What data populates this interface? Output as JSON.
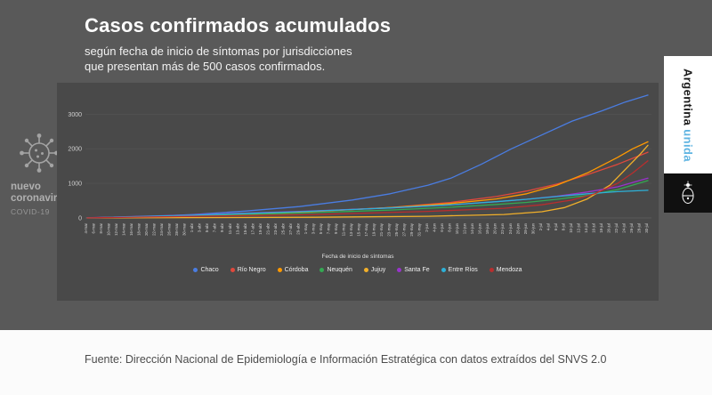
{
  "page": {
    "title": "Casos confirmados acumulados",
    "subtitle_line1": "según fecha de inicio de síntomas por jurisdicciones",
    "subtitle_line2": "que presentan más de 500 casos confirmados.",
    "source": "Fuente: Dirección Nacional de Epidemiología e Información Estratégica con datos extraídos del SNVS 2.0"
  },
  "branding": {
    "left_badge": {
      "line1": "nuevo",
      "line2": "coronavirus",
      "line3": "COVID-19"
    },
    "right_banner": {
      "word1": "Argentina",
      "word2": " unida",
      "accent_color": "#5fb4e2"
    }
  },
  "chart_data": {
    "type": "line",
    "title": "",
    "xlabel": "Fecha de inicio de síntomas",
    "ylabel": "",
    "ylim": [
      0,
      3600
    ],
    "yticks": [
      0,
      1000,
      2000,
      3000
    ],
    "grid": "faint-horizontal",
    "legend_position": "bottom",
    "x_labels": [
      "4-mar",
      "6-mar",
      "8-mar",
      "10-mar",
      "12-mar",
      "14-mar",
      "16-mar",
      "18-mar",
      "20-mar",
      "22-mar",
      "24-mar",
      "26-mar",
      "28-mar",
      "30-mar",
      "1-abr",
      "3-abr",
      "5-abr",
      "7-abr",
      "9-abr",
      "11-abr",
      "13-abr",
      "15-abr",
      "17-abr",
      "19-abr",
      "21-abr",
      "23-abr",
      "25-abr",
      "27-abr",
      "29-abr",
      "1-may",
      "3-may",
      "5-may",
      "7-may",
      "9-may",
      "11-may",
      "13-may",
      "15-may",
      "17-may",
      "19-may",
      "21-may",
      "23-may",
      "25-may",
      "27-may",
      "29-may",
      "31-may",
      "2-jun",
      "4-jun",
      "6-jun",
      "8-jun",
      "10-jun",
      "12-jun",
      "14-jun",
      "16-jun",
      "18-jun",
      "20-jun",
      "22-jun",
      "24-jun",
      "26-jun",
      "28-jun",
      "30-jun",
      "2-jul",
      "4-jul",
      "6-jul",
      "8-jul",
      "10-jul",
      "12-jul",
      "14-jul",
      "16-jul",
      "18-jul",
      "20-jul",
      "22-jul",
      "24-jul",
      "26-jul",
      "28-jul",
      "30-jul"
    ],
    "series": [
      {
        "name": "Chaco",
        "color": "#4a7de2",
        "points": [
          [
            0,
            2
          ],
          [
            7,
            30
          ],
          [
            14,
            100
          ],
          [
            21,
            200
          ],
          [
            28,
            330
          ],
          [
            35,
            520
          ],
          [
            40,
            700
          ],
          [
            45,
            950
          ],
          [
            48,
            1150
          ],
          [
            52,
            1550
          ],
          [
            56,
            2000
          ],
          [
            60,
            2400
          ],
          [
            64,
            2800
          ],
          [
            68,
            3100
          ],
          [
            71,
            3350
          ],
          [
            74,
            3550
          ]
        ]
      },
      {
        "name": "Río Negro",
        "color": "#e0483c",
        "points": [
          [
            0,
            2
          ],
          [
            14,
            60
          ],
          [
            28,
            160
          ],
          [
            40,
            300
          ],
          [
            48,
            450
          ],
          [
            54,
            620
          ],
          [
            58,
            780
          ],
          [
            62,
            980
          ],
          [
            66,
            1250
          ],
          [
            70,
            1550
          ],
          [
            74,
            1900
          ]
        ]
      },
      {
        "name": "Córdoba",
        "color": "#ff9900",
        "points": [
          [
            0,
            2
          ],
          [
            14,
            70
          ],
          [
            28,
            170
          ],
          [
            40,
            300
          ],
          [
            48,
            420
          ],
          [
            54,
            550
          ],
          [
            58,
            700
          ],
          [
            62,
            950
          ],
          [
            66,
            1300
          ],
          [
            70,
            1750
          ],
          [
            72,
            2000
          ],
          [
            74,
            2200
          ]
        ]
      },
      {
        "name": "Neuquén",
        "color": "#34a853",
        "points": [
          [
            0,
            2
          ],
          [
            14,
            60
          ],
          [
            28,
            140
          ],
          [
            40,
            230
          ],
          [
            48,
            310
          ],
          [
            54,
            390
          ],
          [
            58,
            450
          ],
          [
            62,
            540
          ],
          [
            66,
            650
          ],
          [
            70,
            820
          ],
          [
            74,
            1080
          ]
        ]
      },
      {
        "name": "Jujuy",
        "color": "#f2b02a",
        "points": [
          [
            0,
            0
          ],
          [
            30,
            20
          ],
          [
            45,
            50
          ],
          [
            55,
            100
          ],
          [
            60,
            180
          ],
          [
            63,
            300
          ],
          [
            66,
            550
          ],
          [
            69,
            950
          ],
          [
            71,
            1400
          ],
          [
            73,
            1850
          ],
          [
            74,
            2100
          ]
        ]
      },
      {
        "name": "Santa Fe",
        "color": "#9933cc",
        "points": [
          [
            0,
            5
          ],
          [
            14,
            90
          ],
          [
            28,
            190
          ],
          [
            40,
            290
          ],
          [
            48,
            380
          ],
          [
            54,
            470
          ],
          [
            58,
            540
          ],
          [
            62,
            630
          ],
          [
            66,
            750
          ],
          [
            70,
            900
          ],
          [
            74,
            1150
          ]
        ]
      },
      {
        "name": "Entre Ríos",
        "color": "#2db1d8",
        "points": [
          [
            0,
            2
          ],
          [
            14,
            80
          ],
          [
            28,
            180
          ],
          [
            40,
            290
          ],
          [
            48,
            380
          ],
          [
            54,
            470
          ],
          [
            58,
            540
          ],
          [
            62,
            620
          ],
          [
            66,
            700
          ],
          [
            70,
            760
          ],
          [
            74,
            800
          ]
        ]
      },
      {
        "name": "Mendoza",
        "color": "#b82e2e",
        "points": [
          [
            0,
            2
          ],
          [
            30,
            100
          ],
          [
            45,
            190
          ],
          [
            55,
            280
          ],
          [
            60,
            380
          ],
          [
            64,
            520
          ],
          [
            67,
            700
          ],
          [
            70,
            1000
          ],
          [
            72,
            1300
          ],
          [
            74,
            1650
          ]
        ]
      }
    ]
  }
}
